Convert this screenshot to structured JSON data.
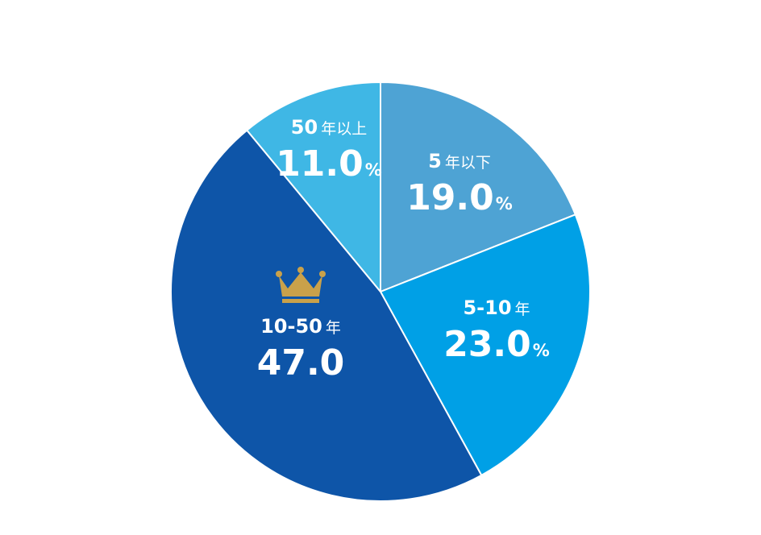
{
  "chart_data": {
    "type": "pie",
    "slices": [
      {
        "label_main": "5",
        "label_suffix": "年以下",
        "value": 19.0,
        "value_text": "19.0",
        "unit": "%",
        "color": "#4EA3D4"
      },
      {
        "label_main": "5-10",
        "label_suffix": "年",
        "value": 23.0,
        "value_text": "23.0",
        "unit": "%",
        "color": "#00A0E6"
      },
      {
        "label_main": "10-50",
        "label_suffix": "年",
        "value": 47.0,
        "value_text": "47.0",
        "unit": "",
        "color": "#0E55A8",
        "highlight": true,
        "highlight_icon": "crown-icon",
        "highlight_color": "#C9A14A"
      },
      {
        "label_main": "50",
        "label_suffix": "年以上",
        "value": 11.0,
        "value_text": "11.0",
        "unit": "%",
        "color": "#3FB7E5"
      }
    ],
    "start_angle_deg": 0,
    "direction": "clockwise",
    "separator_color": "#ffffff"
  }
}
